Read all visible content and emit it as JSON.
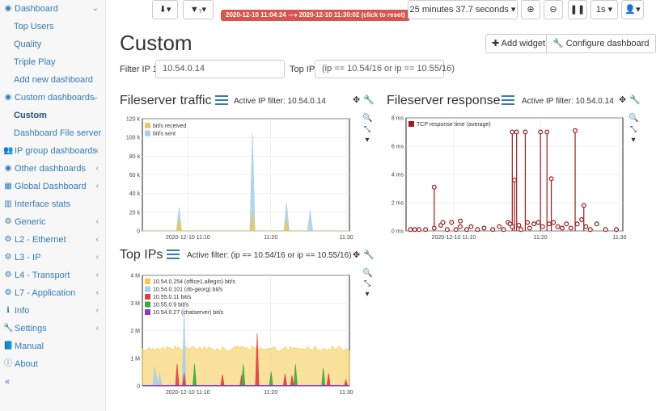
{
  "sidebar": {
    "items": [
      {
        "label": "Dashboard",
        "icon": "dashboard-icon",
        "chev": "⌄"
      },
      {
        "label": "Top Users"
      },
      {
        "label": "Quality"
      },
      {
        "label": "Triple Play"
      },
      {
        "label": "Add new dashboard"
      },
      {
        "label": "Custom dashboards",
        "icon": "dashboard-icon",
        "chev": "⌄"
      },
      {
        "label": "Custom",
        "active": true
      },
      {
        "label": "Dashboard File server"
      },
      {
        "label": "IP group dashboards",
        "icon": "group-icon",
        "chev": "‹"
      },
      {
        "label": "Other dashboards",
        "icon": "dashboard-icon",
        "chev": "‹"
      },
      {
        "label": "Global Dashboard",
        "icon": "table-icon",
        "chev": "‹"
      },
      {
        "label": "Interface stats",
        "icon": "bar-chart-icon"
      },
      {
        "label": "Generic",
        "icon": "gear-icon",
        "chev": "‹"
      },
      {
        "label": "L2 - Ethernet",
        "icon": "cog-icon",
        "chev": "‹"
      },
      {
        "label": "L3 - IP",
        "icon": "cog-icon",
        "chev": "‹"
      },
      {
        "label": "L4 - Transport",
        "icon": "cog-icon",
        "chev": "‹"
      },
      {
        "label": "L7 - Application",
        "icon": "cog-icon",
        "chev": "‹"
      },
      {
        "label": "Info",
        "icon": "info-icon",
        "chev": "‹"
      },
      {
        "label": "Settings",
        "icon": "wrench-icon",
        "chev": "‹"
      },
      {
        "label": "Manual",
        "icon": "book-icon"
      },
      {
        "label": "About",
        "icon": "info-circle-icon"
      },
      {
        "label": "«"
      }
    ]
  },
  "toolbar": {
    "download": "⬇▾",
    "filter": "▼₇▾",
    "time_range": "2020-12-10 11:04:24 ⟶ 2020-12-10 11:30:02  (click to reset)",
    "duration": "25 minutes 37.7 seconds ▾",
    "zoom_in": "⊕",
    "zoom_out": "⊖",
    "pause": "❚❚",
    "refresh": "1s ▾",
    "user": "👤▾"
  },
  "page": {
    "title": "Custom",
    "add_widget": "✚ Add widget",
    "configure": "🔧 Configure dashboard"
  },
  "filters": {
    "filter_ip_label": "Filter IP 1:",
    "filter_ip_value": "10.54.0.14",
    "top_ip_label": "Top IP:",
    "top_ip_value": "(ip == 10.54/16 or ip == 10.55/16)"
  },
  "widgets": {
    "traffic": {
      "title": "Fileserver traffic",
      "sub": "Active IP filter: 10.54.0.14"
    },
    "response": {
      "title": "Fileserver response",
      "sub": "Active IP filter: 10.54.0.14"
    },
    "topips": {
      "title": "Top IPs",
      "sub": "Active filter: (ip == 10.54/16 or ip == 10.55/16)"
    }
  },
  "chart_data": [
    {
      "type": "area",
      "title": "Fileserver traffic",
      "ylim": [
        0,
        120000
      ],
      "yticks": [
        "0",
        "20 k",
        "40 k",
        "60 k",
        "80 k",
        "100 k",
        "120 k"
      ],
      "xticks": [
        "2020-12-10 11:10",
        "11:20",
        "11:30"
      ],
      "series": [
        {
          "name": "bit/s received",
          "color": "#e8c860",
          "values": [
            0,
            0,
            0,
            0,
            0,
            0,
            0,
            0,
            0,
            0,
            0,
            0,
            0,
            0,
            14000,
            0,
            0,
            0,
            0,
            0,
            0,
            0,
            0,
            0,
            0,
            0,
            0,
            0,
            0,
            0,
            0,
            0,
            0,
            0,
            0,
            0,
            0,
            0,
            0,
            0,
            0,
            0,
            20000,
            0,
            0,
            0,
            0,
            0,
            0,
            0,
            0,
            0,
            0,
            0,
            0,
            12000,
            0,
            0,
            0,
            0,
            0,
            0,
            0,
            0,
            0,
            0,
            0,
            0,
            0,
            0,
            0,
            0,
            0,
            0,
            0,
            0,
            0,
            0,
            0,
            0
          ]
        },
        {
          "name": "bit/s sent",
          "color": "#a8cdea",
          "values": [
            0,
            0,
            0,
            0,
            0,
            0,
            0,
            0,
            0,
            0,
            0,
            0,
            0,
            0,
            25000,
            0,
            0,
            0,
            0,
            0,
            0,
            0,
            0,
            0,
            0,
            0,
            0,
            0,
            0,
            0,
            0,
            0,
            0,
            0,
            0,
            0,
            0,
            0,
            0,
            0,
            0,
            0,
            105000,
            0,
            0,
            0,
            0,
            0,
            0,
            0,
            0,
            0,
            0,
            0,
            0,
            30000,
            0,
            0,
            0,
            0,
            0,
            0,
            0,
            0,
            22000,
            0,
            0,
            0,
            0,
            0,
            0,
            0,
            0,
            0,
            0,
            0,
            0,
            0,
            0,
            0
          ]
        }
      ]
    },
    {
      "type": "scatter",
      "title": "Fileserver response",
      "ylim": [
        0,
        8
      ],
      "yticks": [
        "0 ms",
        "2 ms",
        "4 ms",
        "6 ms",
        "8 ms"
      ],
      "xticks": [
        "2020-12-10 11:10",
        "11:20",
        "11:30"
      ],
      "series": [
        {
          "name": "TCP response time (average)",
          "color": "#9b1c1c",
          "points": [
            [
              0.02,
              0.1
            ],
            [
              0.04,
              0.1
            ],
            [
              0.06,
              0.1
            ],
            [
              0.09,
              0.1
            ],
            [
              0.13,
              3.1
            ],
            [
              0.13,
              0.2
            ],
            [
              0.16,
              0.4
            ],
            [
              0.17,
              0.6
            ],
            [
              0.19,
              0.1
            ],
            [
              0.21,
              0.6
            ],
            [
              0.23,
              0.1
            ],
            [
              0.25,
              0.7
            ],
            [
              0.25,
              0.3
            ],
            [
              0.28,
              0.1
            ],
            [
              0.3,
              0.3
            ],
            [
              0.33,
              0.1
            ],
            [
              0.36,
              0.2
            ],
            [
              0.4,
              0.1
            ],
            [
              0.43,
              0.3
            ],
            [
              0.45,
              0.1
            ],
            [
              0.47,
              0.6
            ],
            [
              0.48,
              0.5
            ],
            [
              0.49,
              0.3
            ],
            [
              0.49,
              7.0
            ],
            [
              0.5,
              3.6
            ],
            [
              0.51,
              7.0
            ],
            [
              0.52,
              0.4
            ],
            [
              0.53,
              0.1
            ],
            [
              0.55,
              7.0
            ],
            [
              0.56,
              0.6
            ],
            [
              0.57,
              0.2
            ],
            [
              0.59,
              0.5
            ],
            [
              0.61,
              0.6
            ],
            [
              0.62,
              7.0
            ],
            [
              0.63,
              0.3
            ],
            [
              0.65,
              7.0
            ],
            [
              0.66,
              0.5
            ],
            [
              0.67,
              3.7
            ],
            [
              0.68,
              0.6
            ],
            [
              0.7,
              0.3
            ],
            [
              0.72,
              0.2
            ],
            [
              0.74,
              0.5
            ],
            [
              0.76,
              0.2
            ],
            [
              0.78,
              7.1
            ],
            [
              0.79,
              0.5
            ],
            [
              0.81,
              0.8
            ],
            [
              0.82,
              1.8
            ],
            [
              0.83,
              0.3
            ],
            [
              0.85,
              0.1
            ],
            [
              0.88,
              0.5
            ],
            [
              0.92,
              0.1
            ],
            [
              0.97,
              0.1
            ]
          ]
        }
      ]
    },
    {
      "type": "area",
      "title": "Top IPs",
      "ylim": [
        0,
        4000000
      ],
      "yticks": [
        "0",
        "1 M",
        "2 M",
        "3 M",
        "4 M"
      ],
      "xticks": [
        "2020-12-10 11:10",
        "11:20",
        "11:30"
      ],
      "series": [
        {
          "name": "10.54.0.254 (office1.allegro) bit/s",
          "color": "#f5c84a"
        },
        {
          "name": "10.54.0.101 (nb-georg) bit/s",
          "color": "#a8cdea"
        },
        {
          "name": "10.55.0.11 bit/s",
          "color": "#d94040"
        },
        {
          "name": "10.55.0.9 bit/s",
          "color": "#3aa83a"
        },
        {
          "name": "10.54.0.27 (chatserver) bit/s",
          "color": "#8a3ac0"
        }
      ]
    }
  ]
}
